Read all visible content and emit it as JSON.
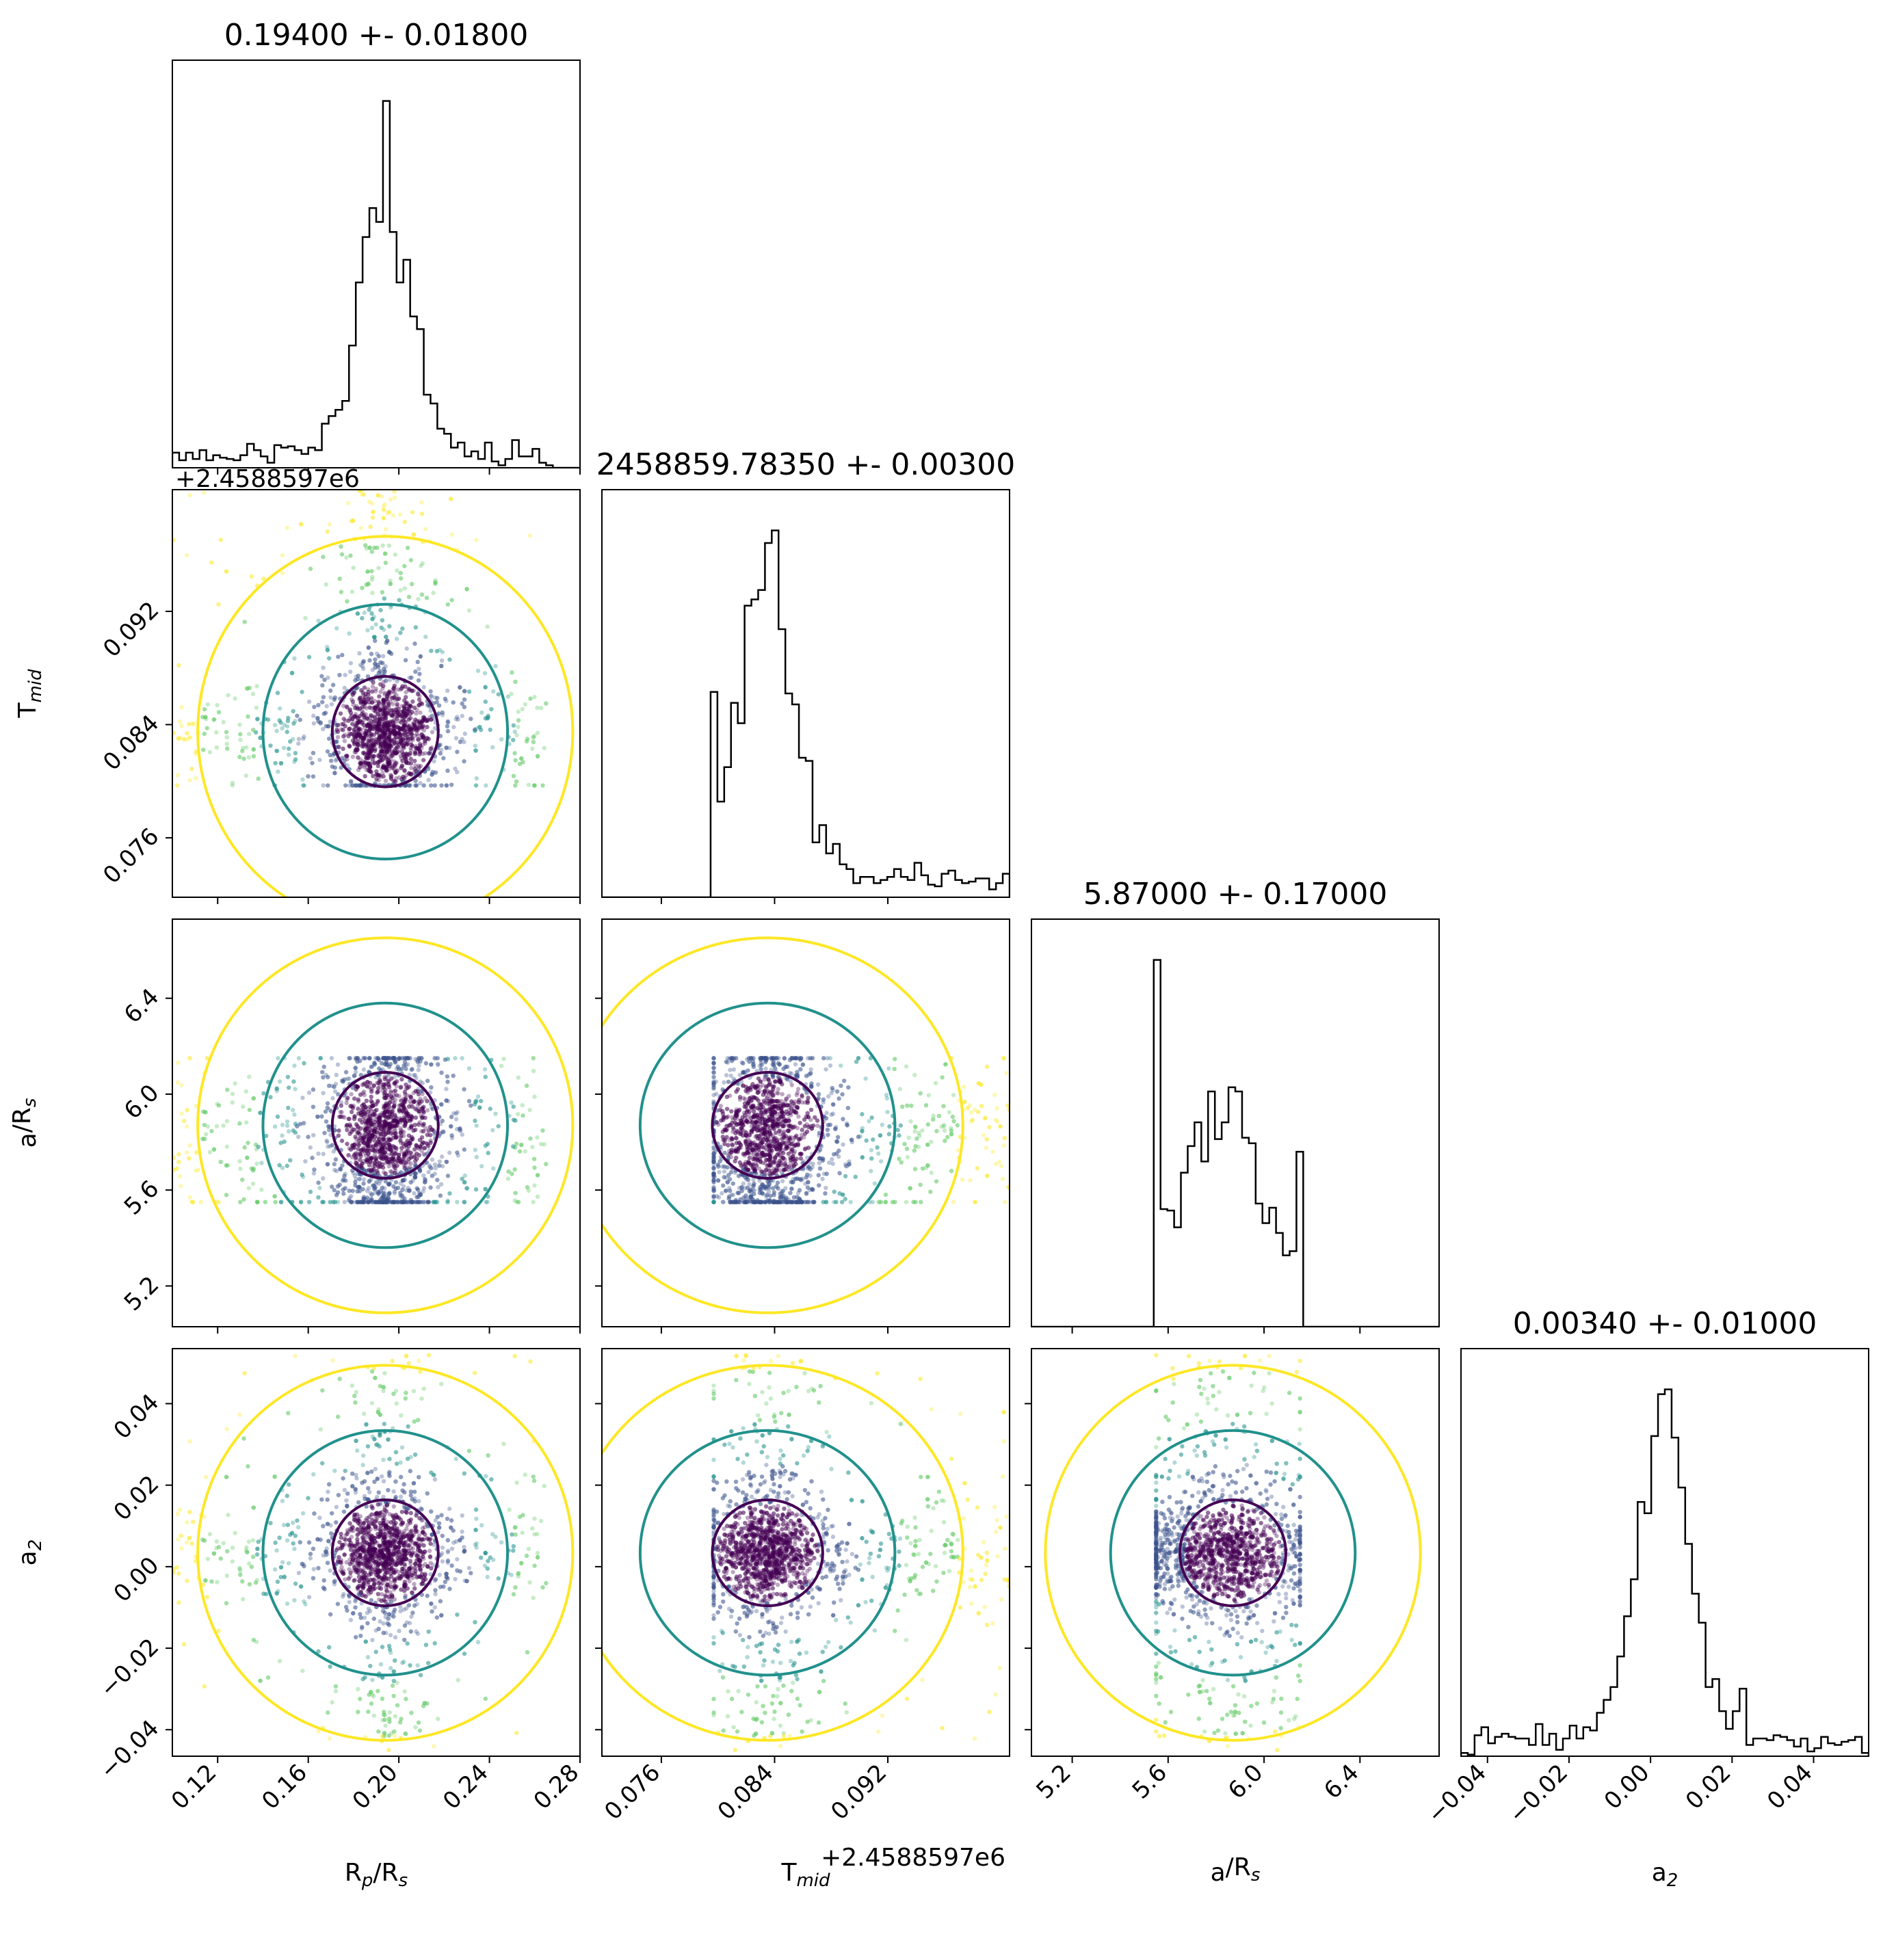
{
  "chart_data": {
    "type": "corner",
    "parameters": [
      {
        "key": "rp",
        "label_main": "R",
        "label_sub1": "p",
        "label_mid": "/R",
        "label_sub2": "s",
        "range": [
          0.1,
          0.28
        ],
        "ticks": [
          0.12,
          0.16,
          0.2,
          0.24,
          0.28
        ],
        "tick_labels": [
          "0.12",
          "0.16",
          "0.20",
          "0.24",
          "0.28"
        ],
        "value": 0.194,
        "sigma": 0.018,
        "title": "0.19400 +- 0.01800",
        "offset": ""
      },
      {
        "key": "tmid",
        "label_main": "T",
        "label_sub1": "mid",
        "label_mid": "",
        "label_sub2": "",
        "range": [
          0.0718,
          0.1006
        ],
        "ticks": [
          0.076,
          0.084,
          0.092
        ],
        "tick_labels": [
          "0.076",
          "0.084",
          "0.092"
        ],
        "value": 0.0835,
        "sigma": 0.003,
        "title": "2458859.78350 +- 0.00300",
        "offset": "+2.4588597e6"
      },
      {
        "key": "ar",
        "label_main": "a",
        "label_sub1": "",
        "label_mid": "/R",
        "label_sub2": "s",
        "range": [
          5.03,
          6.73
        ],
        "ticks": [
          5.2,
          5.6,
          6.0,
          6.4
        ],
        "tick_labels": [
          "5.2",
          "5.6",
          "6.0",
          "6.4"
        ],
        "value": 5.87,
        "sigma": 0.17,
        "title": "5.87000 +- 0.17000",
        "offset": ""
      },
      {
        "key": "a2",
        "label_main": "a",
        "label_sub1": "2",
        "label_mid": "",
        "label_sub2": "",
        "range": [
          -0.0465,
          0.0535
        ],
        "ticks": [
          -0.04,
          -0.02,
          0.0,
          0.02,
          0.04
        ],
        "tick_labels": [
          "−0.04",
          "−0.02",
          "0.00",
          "0.02",
          "0.04"
        ],
        "value": 0.0034,
        "sigma": 0.01,
        "title": "0.00340 +- 0.01000",
        "offset": ""
      }
    ],
    "sample_bounds": {
      "rp": [
        0.1,
        0.265
      ],
      "tmid": [
        0.0797,
        0.1006
      ],
      "ar": [
        5.55,
        6.15
      ],
      "a2": [
        -0.045,
        0.052
      ]
    },
    "contour_levels": [
      "1-sigma",
      "2-sigma",
      "3-sigma"
    ],
    "colormap": [
      "#440154",
      "#21918c",
      "#fde725"
    ],
    "n_samples_per_panel": 2600,
    "histogram_color": "#000000"
  }
}
